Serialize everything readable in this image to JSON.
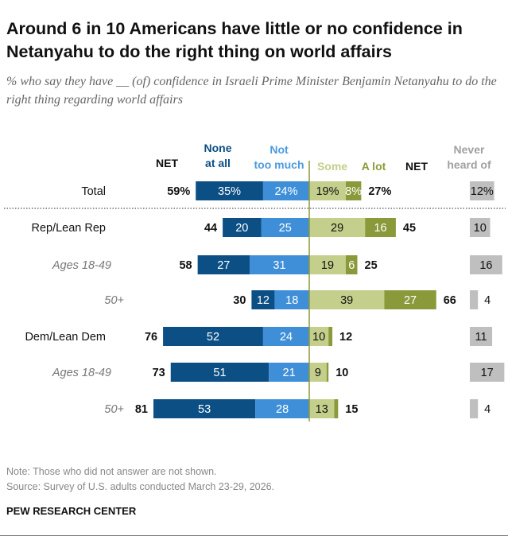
{
  "title": "Around 6 in 10 Americans have little or no confidence in Netanyahu to do the right thing on world affairs",
  "subtitle": "% who say they have __ (of) confidence in Israeli Prime Minister Benjamin Netanyahu to do the right thing regarding world affairs",
  "note": "Note: Those who did not answer are not shown.",
  "source": "Source: Survey of U.S. adults conducted March 23-29, 2026.",
  "brand": "PEW RESEARCH CENTER",
  "chart_data": {
    "type": "bar",
    "orientation": "horizontal diverging stacked",
    "columns": {
      "net_negative": "NET",
      "none": [
        "None",
        "at all"
      ],
      "not_too_much": [
        "Not",
        "too much"
      ],
      "some": "Some",
      "a_lot": "A lot",
      "net_positive": "NET",
      "never_heard": [
        "Never",
        "heard of"
      ]
    },
    "colors": {
      "none": "#0b4f85",
      "not_too_much": "#3f8fd8",
      "some": "#c4cf8c",
      "a_lot": "#8a9a3a",
      "never_heard": "#bfbfbf",
      "header_none": "#0b4f85",
      "header_not_too_much": "#4b9be0",
      "header_some": "#c3ce8a",
      "header_a_lot": "#8b9b38",
      "header_never": "#a0a0a0"
    },
    "rows": [
      {
        "label": "Total",
        "style": "normal",
        "net_neg": "59%",
        "none": 35,
        "none_label": "35%",
        "not_too_much": 24,
        "ntm_label": "24%",
        "some": 19,
        "some_label": "19%",
        "a_lot": 8,
        "alot_label": "8%",
        "net_pos": "27%",
        "never": 12,
        "never_label": "12%"
      },
      {
        "label": "Rep/Lean Rep",
        "style": "normal",
        "net_neg": "44",
        "none": 20,
        "none_label": "20",
        "not_too_much": 25,
        "ntm_label": "25",
        "some": 29,
        "some_label": "29",
        "a_lot": 16,
        "alot_label": "16",
        "net_pos": "45",
        "never": 10,
        "never_label": "10"
      },
      {
        "label": "Ages 18-49",
        "style": "italic",
        "net_neg": "58",
        "none": 27,
        "none_label": "27",
        "not_too_much": 31,
        "ntm_label": "31",
        "some": 19,
        "some_label": "19",
        "a_lot": 6,
        "alot_label": "6",
        "net_pos": "25",
        "never": 16,
        "never_label": "16"
      },
      {
        "label": "50+",
        "style": "italic",
        "net_neg": "30",
        "none": 12,
        "none_label": "12",
        "not_too_much": 18,
        "ntm_label": "18",
        "some": 39,
        "some_label": "39",
        "a_lot": 27,
        "alot_label": "27",
        "net_pos": "66",
        "never": 4,
        "never_label": "4"
      },
      {
        "label": "Dem/Lean Dem",
        "style": "normal",
        "net_neg": "76",
        "none": 52,
        "none_label": "52",
        "not_too_much": 24,
        "ntm_label": "24",
        "some": 10,
        "some_label": "10",
        "a_lot": 2,
        "alot_label": "",
        "net_pos": "12",
        "never": 11,
        "never_label": "11"
      },
      {
        "label": "Ages 18-49",
        "style": "italic",
        "net_neg": "73",
        "none": 51,
        "none_label": "51",
        "not_too_much": 21,
        "ntm_label": "21",
        "some": 9,
        "some_label": "9",
        "a_lot": 1,
        "alot_label": "",
        "net_pos": "10",
        "never": 17,
        "never_label": "17"
      },
      {
        "label": "50+",
        "style": "italic",
        "net_neg": "81",
        "none": 53,
        "none_label": "53",
        "not_too_much": 28,
        "ntm_label": "28",
        "some": 13,
        "some_label": "13",
        "a_lot": 2,
        "alot_label": "",
        "net_pos": "15",
        "never": 4,
        "never_label": "4"
      }
    ]
  }
}
